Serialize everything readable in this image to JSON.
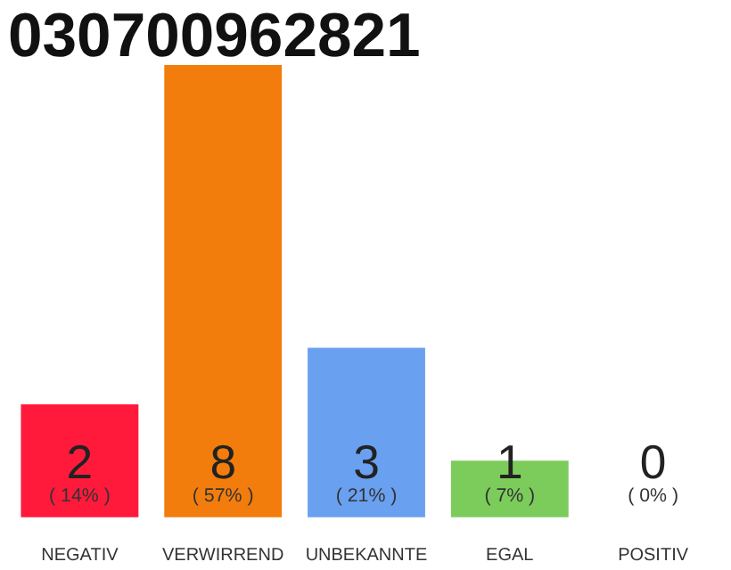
{
  "chart_data": {
    "type": "bar",
    "title": "030700962821",
    "categories": [
      "NEGATIV",
      "VERWIRREND",
      "UNBEKANNTE",
      "EGAL",
      "POSITIV"
    ],
    "values": [
      2,
      8,
      3,
      1,
      0
    ],
    "colors": [
      "#ff1a3c",
      "#f27d0c",
      "#6aa0f0",
      "#7ccc5c",
      "#cccccc"
    ],
    "ylim": [
      0,
      8
    ],
    "data_labels": true,
    "grid": false,
    "tick_labels": "x",
    "annotations": [
      "( 14% )",
      "( 57% )",
      "( 21% )",
      "( 7% )",
      "( 0% )"
    ]
  }
}
